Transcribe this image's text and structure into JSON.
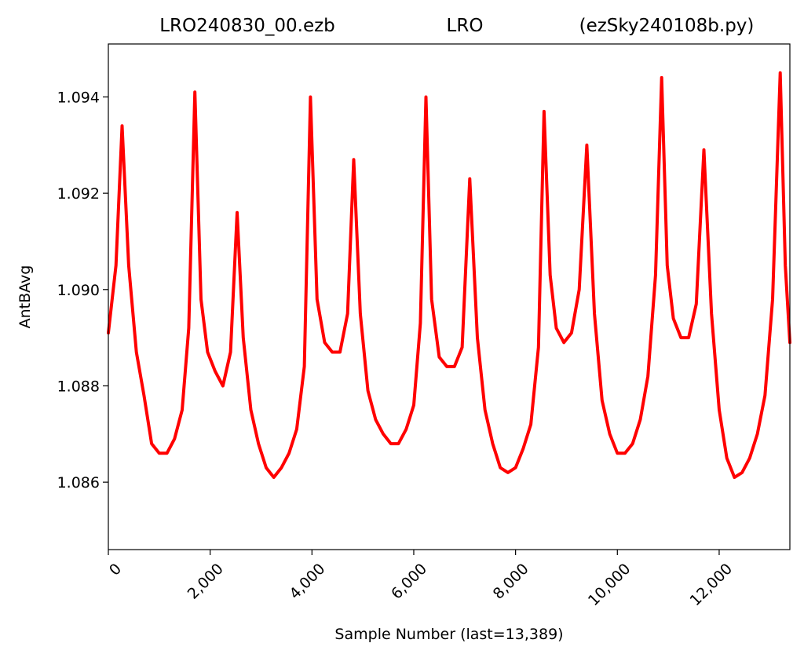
{
  "chart_data": {
    "type": "line",
    "title_left": "LRO240830_00.ezb",
    "title_center": "LRO",
    "title_right": "(ezSky240108b.py)",
    "xlabel": "Sample Number (last=13,389)",
    "ylabel": "AntBAvg",
    "xlim": [
      0,
      13389
    ],
    "ylim": [
      1.0846,
      1.0951
    ],
    "x_ticks": [
      0,
      2000,
      4000,
      6000,
      8000,
      10000,
      12000
    ],
    "x_tick_labels": [
      "0",
      "2,000",
      "4,000",
      "6,000",
      "8,000",
      "10,000",
      "12,000"
    ],
    "y_ticks": [
      1.086,
      1.088,
      1.09,
      1.092,
      1.094
    ],
    "y_tick_labels": [
      "1.086",
      "1.088",
      "1.090",
      "1.092",
      "1.094"
    ],
    "grid": false,
    "series": [
      {
        "color": "#ff0000",
        "x": [
          0,
          150,
          270,
          400,
          550,
          700,
          850,
          1000,
          1150,
          1300,
          1450,
          1580,
          1700,
          1820,
          1950,
          2100,
          2250,
          2400,
          2530,
          2650,
          2800,
          2950,
          3100,
          3250,
          3400,
          3550,
          3700,
          3850,
          3970,
          4100,
          4250,
          4400,
          4550,
          4700,
          4820,
          4950,
          5100,
          5250,
          5400,
          5550,
          5700,
          5850,
          6000,
          6130,
          6240,
          6350,
          6500,
          6650,
          6800,
          6950,
          7100,
          7250,
          7400,
          7550,
          7700,
          7850,
          8000,
          8150,
          8300,
          8450,
          8560,
          8680,
          8800,
          8950,
          9100,
          9250,
          9400,
          9550,
          9700,
          9850,
          10000,
          10150,
          10300,
          10450,
          10600,
          10750,
          10870,
          10980,
          11100,
          11250,
          11400,
          11550,
          11700,
          11850,
          12000,
          12150,
          12300,
          12450,
          12600,
          12750,
          12900,
          13050,
          13200,
          13300,
          13389
        ],
        "y": [
          1.0891,
          1.0905,
          1.0934,
          1.0905,
          1.0887,
          1.0878,
          1.0868,
          1.0866,
          1.0866,
          1.0869,
          1.0875,
          1.0892,
          1.0941,
          1.0898,
          1.0887,
          1.0883,
          1.088,
          1.0887,
          1.0916,
          1.089,
          1.0875,
          1.0868,
          1.0863,
          1.0861,
          1.0863,
          1.0866,
          1.0871,
          1.0884,
          1.094,
          1.0898,
          1.0889,
          1.0887,
          1.0887,
          1.0895,
          1.0927,
          1.0895,
          1.0879,
          1.0873,
          1.087,
          1.0868,
          1.0868,
          1.0871,
          1.0876,
          1.0893,
          1.094,
          1.0898,
          1.0886,
          1.0884,
          1.0884,
          1.0888,
          1.0923,
          1.089,
          1.0875,
          1.0868,
          1.0863,
          1.0862,
          1.0863,
          1.0867,
          1.0872,
          1.0888,
          1.0937,
          1.0903,
          1.0892,
          1.0889,
          1.0891,
          1.09,
          1.093,
          1.0895,
          1.0877,
          1.087,
          1.0866,
          1.0866,
          1.0868,
          1.0873,
          1.0882,
          1.0903,
          1.0944,
          1.0905,
          1.0894,
          1.089,
          1.089,
          1.0897,
          1.0929,
          1.0895,
          1.0875,
          1.0865,
          1.0861,
          1.0862,
          1.0865,
          1.087,
          1.0878,
          1.0898,
          1.0945,
          1.0905,
          1.0889
        ]
      }
    ]
  }
}
